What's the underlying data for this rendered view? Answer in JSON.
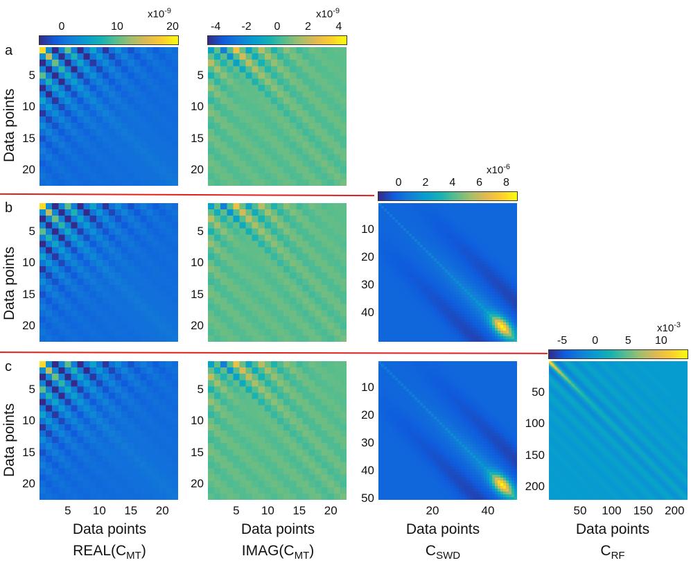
{
  "figure": {
    "rows": [
      {
        "letter": "a"
      },
      {
        "letter": "b"
      },
      {
        "letter": "c"
      }
    ],
    "separator_color": "#e02020",
    "ylabel": "Data points",
    "xlabel": "Data points",
    "column_titles": [
      {
        "base": "REAL(C",
        "sub": "MT",
        "suffix": ")"
      },
      {
        "base": "IMAG(C",
        "sub": "MT",
        "suffix": ")"
      },
      {
        "base": "C",
        "sub": "SWD",
        "suffix": ""
      },
      {
        "base": "C",
        "sub": "RF",
        "suffix": ""
      }
    ]
  },
  "colormap": "parula",
  "chart_data": [
    {
      "type": "heatmap",
      "id": "a-real",
      "row": "a",
      "column": "REAL(C_MT)",
      "size": 22,
      "kind": "real",
      "colorbar": {
        "ticks": [
          "0",
          "10",
          "20"
        ],
        "tick_values": [
          0,
          10,
          20
        ],
        "range": [
          -4,
          21
        ],
        "exponent": "x10",
        "exponent_power": "-9"
      },
      "y_ticks": [
        "5",
        "10",
        "15",
        "20"
      ],
      "y_tick_values": [
        5,
        10,
        15,
        20
      ],
      "x_ticks": []
    },
    {
      "type": "heatmap",
      "id": "a-imag",
      "row": "a",
      "column": "IMAG(C_MT)",
      "size": 22,
      "kind": "imag",
      "colorbar": {
        "ticks": [
          "-4",
          "-2",
          "0",
          "2",
          "4"
        ],
        "tick_values": [
          -4,
          -2,
          0,
          2,
          4
        ],
        "range": [
          -4.5,
          4.5
        ],
        "exponent": "x10",
        "exponent_power": "-9"
      },
      "y_ticks": [
        "5",
        "10",
        "15",
        "20"
      ],
      "y_tick_values": [
        5,
        10,
        15,
        20
      ],
      "x_ticks": []
    },
    {
      "type": "heatmap",
      "id": "b-real",
      "row": "b",
      "column": "REAL(C_MT)",
      "size": 22,
      "kind": "real",
      "y_ticks": [
        "5",
        "10",
        "15",
        "20"
      ],
      "y_tick_values": [
        5,
        10,
        15,
        20
      ],
      "x_ticks": []
    },
    {
      "type": "heatmap",
      "id": "b-imag",
      "row": "b",
      "column": "IMAG(C_MT)",
      "size": 22,
      "kind": "imag",
      "y_ticks": [
        "5",
        "10",
        "15",
        "20"
      ],
      "y_tick_values": [
        5,
        10,
        15,
        20
      ],
      "x_ticks": []
    },
    {
      "type": "heatmap",
      "id": "b-swd",
      "row": "b",
      "column": "C_SWD",
      "size": 50,
      "kind": "swd",
      "colorbar": {
        "ticks": [
          "0",
          "2",
          "4",
          "6",
          "8"
        ],
        "tick_values": [
          0,
          2,
          4,
          6,
          8
        ],
        "range": [
          -1.5,
          8.8
        ],
        "exponent": "x10",
        "exponent_power": "-6"
      },
      "y_ticks": [
        "10",
        "20",
        "30",
        "40"
      ],
      "y_tick_values": [
        10,
        20,
        30,
        40
      ],
      "x_ticks": []
    },
    {
      "type": "heatmap",
      "id": "c-real",
      "row": "c",
      "column": "REAL(C_MT)",
      "size": 22,
      "kind": "real",
      "y_ticks": [
        "5",
        "10",
        "15",
        "20"
      ],
      "y_tick_values": [
        5,
        10,
        15,
        20
      ],
      "x_ticks": [
        "5",
        "10",
        "15",
        "20"
      ],
      "x_tick_values": [
        5,
        10,
        15,
        20
      ]
    },
    {
      "type": "heatmap",
      "id": "c-imag",
      "row": "c",
      "column": "IMAG(C_MT)",
      "size": 22,
      "kind": "imag",
      "y_ticks": [
        "5",
        "10",
        "15",
        "20"
      ],
      "y_tick_values": [
        5,
        10,
        15,
        20
      ],
      "x_ticks": [
        "5",
        "10",
        "15",
        "20"
      ],
      "x_tick_values": [
        5,
        10,
        15,
        20
      ]
    },
    {
      "type": "heatmap",
      "id": "c-swd",
      "row": "c",
      "column": "C_SWD",
      "size": 50,
      "kind": "swd",
      "y_ticks": [
        "10",
        "20",
        "30",
        "40",
        "50"
      ],
      "y_tick_values": [
        10,
        20,
        30,
        40,
        50
      ],
      "x_ticks": [
        "20",
        "40"
      ],
      "x_tick_values": [
        20,
        40
      ]
    },
    {
      "type": "heatmap",
      "id": "c-rf",
      "row": "c",
      "column": "C_RF",
      "size": 220,
      "kind": "rf",
      "colorbar": {
        "ticks": [
          "-5",
          "0",
          "5",
          "10"
        ],
        "tick_values": [
          -5,
          0,
          5,
          10
        ],
        "range": [
          -7,
          14
        ],
        "exponent": "x10",
        "exponent_power": "-3"
      },
      "y_ticks": [
        "50",
        "100",
        "150",
        "200"
      ],
      "y_tick_values": [
        50,
        100,
        150,
        200
      ],
      "x_ticks": [
        "50",
        "100",
        "150",
        "200"
      ],
      "x_tick_values": [
        50,
        100,
        150,
        200
      ]
    }
  ]
}
